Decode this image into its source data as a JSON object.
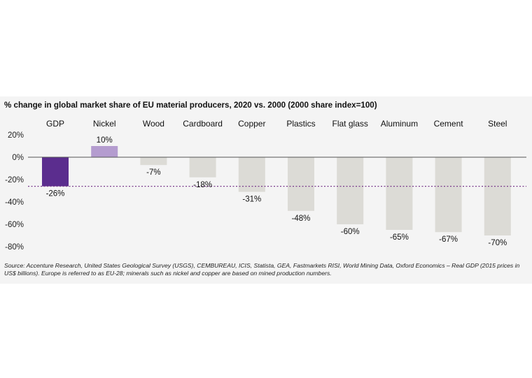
{
  "chart_data": {
    "type": "bar",
    "title": "% change in global market share of EU material producers, 2020 vs. 2000 (2000 share index=100)",
    "categories": [
      "GDP",
      "Nickel",
      "Wood",
      "Cardboard",
      "Copper",
      "Plastics",
      "Flat glass",
      "Aluminum",
      "Cement",
      "Steel"
    ],
    "values": [
      -26,
      10,
      -7,
      -18,
      -31,
      -48,
      -60,
      -65,
      -67,
      -70
    ],
    "value_labels": [
      "-26%",
      "10%",
      "-7%",
      "-18%",
      "-31%",
      "-48%",
      "-60%",
      "-65%",
      "-67%",
      "-70%"
    ],
    "y_ticks": [
      20,
      0,
      -20,
      -40,
      -60,
      -80
    ],
    "y_tick_labels": [
      "20%",
      "0%",
      "-20%",
      "-40%",
      "-60%",
      "-80%"
    ],
    "ylim": [
      -80,
      20
    ],
    "reference_line": -26,
    "grid": false,
    "colors": {
      "gdp": "#5b2d8e",
      "nickel": "#b49ccf",
      "others": "#dcdbd6",
      "zero_line": "#555555",
      "reference_line": "#7a3a8c"
    }
  },
  "source": "Source: Accenture Research, United States Geological Survey (USGS), CEMBUREAU, ICIS, Statista, GEA, Fastmarkets RISI, World Mining Data, Oxford Economics – Real GDP (2015 prices in US$ billions). Europe is referred to as EU-28; minerals such as nickel and copper are based on mined production numbers."
}
